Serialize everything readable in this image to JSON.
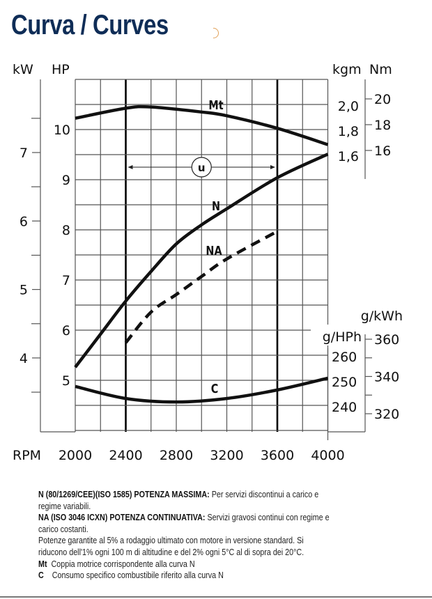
{
  "header": {
    "title": "Curva / Curves",
    "icon": "half-circle-icon",
    "icon_color": "#e2a25a",
    "title_color": "#0f2d57"
  },
  "chart_data": {
    "type": "line",
    "title": "Curva / Curves",
    "xlabel": "RPM",
    "x_ticks": [
      "2000",
      "2400",
      "2800",
      "3200",
      "3600",
      "4000"
    ],
    "xlim": [
      2000,
      4000
    ],
    "grid": true,
    "axes": {
      "kw": {
        "label": "kW",
        "ticks": [
          "7",
          "6",
          "5",
          "4"
        ],
        "tick_values": [
          7,
          6,
          5,
          4
        ]
      },
      "hp": {
        "label": "HP",
        "ticks": [
          "10",
          "9",
          "8",
          "7",
          "6",
          "5"
        ],
        "tick_values": [
          10,
          9,
          8,
          7,
          6,
          5
        ],
        "range": [
          4,
          11
        ]
      },
      "kgm": {
        "label": "kgm",
        "ticks": [
          "2,0",
          "1,8",
          "1,6"
        ],
        "tick_values": [
          2.0,
          1.8,
          1.6
        ]
      },
      "nm": {
        "label": "Nm",
        "ticks": [
          "20",
          "18",
          "16"
        ],
        "tick_values": [
          20,
          18,
          16
        ]
      },
      "ghph": {
        "label": "g/HPh",
        "ticks": [
          "260",
          "250",
          "240"
        ],
        "tick_values": [
          260,
          250,
          240
        ]
      },
      "gkwh": {
        "label": "g/kWh",
        "ticks": [
          "360",
          "340",
          "320"
        ],
        "tick_values": [
          360,
          340,
          320
        ]
      }
    },
    "operating_range": {
      "label": "u",
      "from": 2400,
      "to": 3600
    },
    "series": [
      {
        "name": "Mt",
        "axis": "kgm",
        "style": "solid",
        "x": [
          2000,
          2400,
          2600,
          3000,
          3200,
          3600,
          4000
        ],
        "y": [
          1.89,
          1.97,
          1.98,
          1.94,
          1.91,
          1.81,
          1.68
        ]
      },
      {
        "name": "N",
        "axis": "hp",
        "style": "solid",
        "x": [
          2000,
          2200,
          2400,
          2600,
          2800,
          3000,
          3200,
          3600,
          4000
        ],
        "y": [
          5.26,
          5.92,
          6.58,
          7.17,
          7.72,
          8.1,
          8.42,
          9.04,
          9.51
        ]
      },
      {
        "name": "NA",
        "axis": "hp",
        "style": "dashed",
        "x": [
          2400,
          2600,
          2800,
          3000,
          3200,
          3600
        ],
        "y": [
          5.75,
          6.36,
          6.71,
          7.07,
          7.42,
          7.97
        ]
      },
      {
        "name": "C",
        "axis": "ghph",
        "style": "solid",
        "x": [
          2000,
          2400,
          2800,
          3200,
          3600,
          4000
        ],
        "y": [
          248.1,
          243.3,
          241.9,
          243.3,
          246.7,
          251.4
        ]
      }
    ]
  },
  "notes": [
    {
      "bold": "N (80/1269/CEE)(ISO 1585) POTENZA MASSIMA:",
      "text": " Per servizi discontinui a carico e"
    },
    {
      "bold": "",
      "text": "regime variabili."
    },
    {
      "bold": "NA (ISO 3046 ICXN) POTENZA CONTINUATIVA:",
      "text": " Servizi gravosi continui con regime e"
    },
    {
      "bold": "",
      "text": "carico costanti."
    },
    {
      "bold": "",
      "text": "Potenze garantite al 5% a rodaggio ultimato con motore in versione standard. Si"
    },
    {
      "bold": "",
      "text": "riducono dell'1% ogni 100 m di altitudine e del 2% ogni 5°C al di sopra dei 20°C."
    },
    {
      "bold": "Mt",
      "text": "  Coppia motrice corrispondente alla curva N"
    },
    {
      "bold": "C",
      "text": "    Consumo specifico combustibile riferito alla curva N"
    }
  ]
}
